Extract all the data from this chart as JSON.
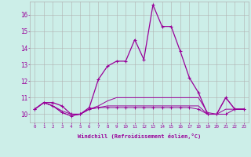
{
  "xlabel": "Windchill (Refroidissement éolien,°C)",
  "bg_color": "#cceee8",
  "grid_color": "#b0b0b0",
  "line_color": "#990099",
  "x_ticks": [
    0,
    1,
    2,
    3,
    4,
    5,
    6,
    7,
    8,
    9,
    10,
    11,
    12,
    13,
    14,
    15,
    16,
    17,
    18,
    19,
    20,
    21,
    22,
    23
  ],
  "y_ticks": [
    10,
    11,
    12,
    13,
    14,
    15,
    16
  ],
  "ylim": [
    9.5,
    16.8
  ],
  "xlim": [
    -0.5,
    23.5
  ],
  "series": [
    [
      10.3,
      10.7,
      10.7,
      10.5,
      10.0,
      10.0,
      10.4,
      12.1,
      12.9,
      13.2,
      13.2,
      14.5,
      13.3,
      16.6,
      15.3,
      15.3,
      13.8,
      12.2,
      11.3,
      10.0,
      10.0,
      11.0,
      10.3,
      10.3
    ],
    [
      10.3,
      10.7,
      10.5,
      10.1,
      9.9,
      10.0,
      10.3,
      10.4,
      10.4,
      10.4,
      10.4,
      10.4,
      10.4,
      10.4,
      10.4,
      10.4,
      10.4,
      10.4,
      10.3,
      10.0,
      10.0,
      10.0,
      10.3,
      10.3
    ],
    [
      10.3,
      10.7,
      10.5,
      10.2,
      10.0,
      10.0,
      10.3,
      10.5,
      10.8,
      11.0,
      11.0,
      11.0,
      11.0,
      11.0,
      11.0,
      11.0,
      11.0,
      11.0,
      11.0,
      10.1,
      10.0,
      11.0,
      10.3,
      10.3
    ],
    [
      10.3,
      10.7,
      10.5,
      10.1,
      9.9,
      10.0,
      10.3,
      10.4,
      10.5,
      10.5,
      10.5,
      10.5,
      10.5,
      10.5,
      10.5,
      10.5,
      10.5,
      10.5,
      10.5,
      10.0,
      10.0,
      10.3,
      10.3,
      10.3
    ]
  ]
}
